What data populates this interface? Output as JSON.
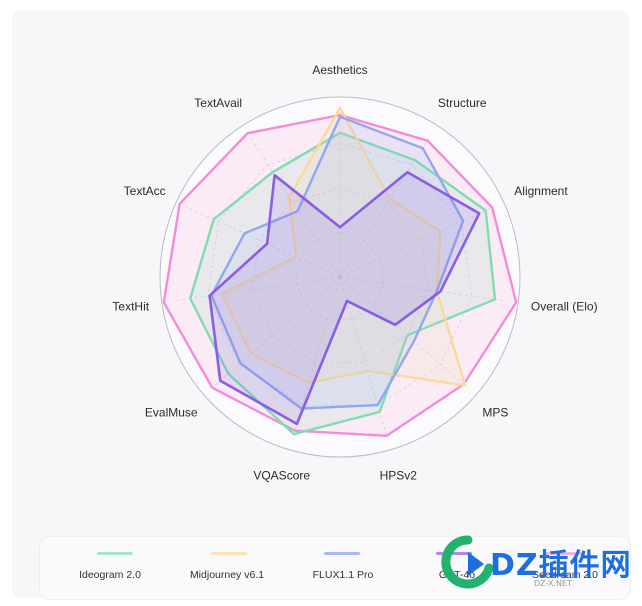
{
  "chart_data": {
    "type": "radar",
    "axes": [
      "Aesthetics",
      "Structure",
      "Alignment",
      "Overall (Elo)",
      "MPS",
      "HPSv2",
      "VQAScore",
      "EvalMuse",
      "TextHit",
      "TextAcc",
      "TextAvail"
    ],
    "rlim": [
      0,
      1
    ],
    "grid": true,
    "legend_position": "bottom",
    "series": [
      {
        "name": "Ideogram 2.0",
        "color": "#7fdcaf",
        "values": [
          0.81,
          0.78,
          0.9,
          0.88,
          0.5,
          0.79,
          0.92,
          0.83,
          0.85,
          0.78,
          0.7
        ]
      },
      {
        "name": "Midjourney v6.1",
        "color": "#fbd99b",
        "values": [
          0.95,
          0.52,
          0.62,
          0.55,
          0.93,
          0.55,
          0.62,
          0.66,
          0.67,
          0.27,
          0.53
        ]
      },
      {
        "name": "FLUX1.1 Pro",
        "color": "#93a7ef",
        "values": [
          0.9,
          0.86,
          0.76,
          0.55,
          0.55,
          0.75,
          0.77,
          0.74,
          0.73,
          0.59,
          0.44
        ]
      },
      {
        "name": "GPT-4o",
        "color": "#8b5de5",
        "values": [
          0.28,
          0.7,
          0.86,
          0.57,
          0.41,
          0.14,
          0.86,
          0.89,
          0.74,
          0.45,
          0.68
        ]
      },
      {
        "name": "Seedream 2.0",
        "color": "#f58bd8",
        "values": [
          0.91,
          0.91,
          0.94,
          1.0,
          0.92,
          0.93,
          0.9,
          0.95,
          1.0,
          0.99,
          0.96
        ]
      }
    ]
  },
  "legend": {
    "items": [
      "Ideogram 2.0",
      "Midjourney v6.1",
      "FLUX1.1 Pro",
      "GPT-4o",
      "Seedream 2.0"
    ]
  },
  "watermark": {
    "text": "DZ插件网",
    "sub": "DZ-X.NET"
  }
}
